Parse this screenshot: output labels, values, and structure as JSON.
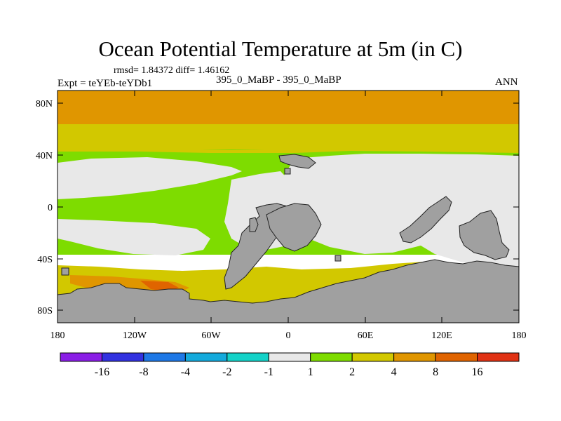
{
  "title": "Ocean Potential Temperature at 5m (in C)",
  "stats": "rmsd= 1.84372 diff= 1.46162",
  "experiment": "Expt = teYEb-teYDb1",
  "case_label": "395_0_MaBP - 395_0_MaBP",
  "season": "ANN",
  "axes": {
    "y_ticks": [
      "80N",
      "40N",
      "0",
      "40S",
      "80S"
    ],
    "x_ticks": [
      "180",
      "120W",
      "60W",
      "0",
      "60E",
      "120E",
      "180"
    ]
  },
  "legend": {
    "labels": [
      "-16",
      "-8",
      "-4",
      "-2",
      "-1",
      "1",
      "2",
      "4",
      "8",
      "16"
    ],
    "colors": [
      "#8a1ee6",
      "#3232e0",
      "#1e78e6",
      "#14aadc",
      "#14d2c8",
      "#e8e8e8",
      "#7edc00",
      "#d2c800",
      "#e09600",
      "#e06400",
      "#e03214"
    ]
  },
  "colors": {
    "land": "#a0a0a0",
    "near_zero": "#e8e8e8",
    "band_1_2": "#7edc00",
    "band_2_4": "#d2c800",
    "band_4_8": "#e09600"
  }
}
